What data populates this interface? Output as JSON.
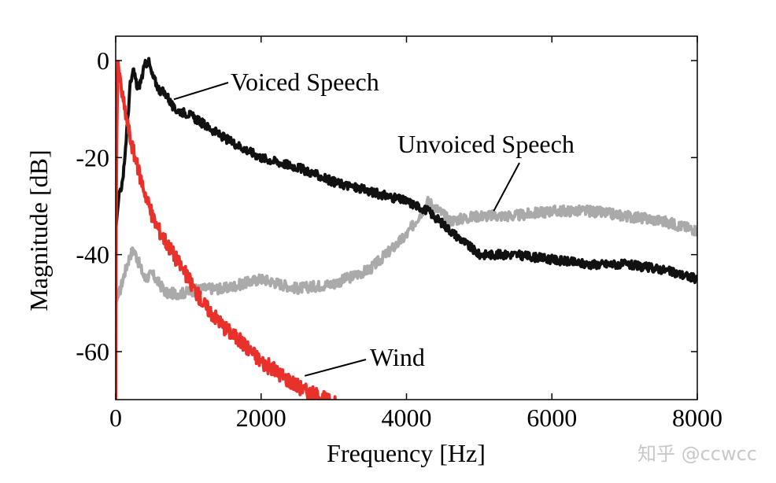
{
  "chart_data": {
    "type": "line",
    "xlabel": "Frequency [Hz]",
    "ylabel": "Magnitude [dB]",
    "xlim": [
      0,
      8000
    ],
    "ylim": [
      -70,
      5
    ],
    "xticks": [
      0,
      2000,
      4000,
      6000,
      8000
    ],
    "xtick_labels": [
      "0",
      "2000",
      "4000",
      "6000",
      "8000"
    ],
    "yticks": [
      0,
      -20,
      -40,
      -60
    ],
    "ytick_labels": [
      "0",
      "-20",
      "-40",
      "-60"
    ],
    "grid": false,
    "legend": "none",
    "series": [
      {
        "name": "Voiced Speech",
        "color": "#111111",
        "x": [
          0,
          50,
          100,
          150,
          200,
          250,
          300,
          350,
          400,
          450,
          500,
          600,
          700,
          800,
          1000,
          1200,
          1500,
          2000,
          2500,
          3000,
          3500,
          4000,
          4300,
          4600,
          5000,
          5500,
          6000,
          6500,
          7000,
          7500,
          8000
        ],
        "y": [
          -35,
          -27,
          -25,
          -15,
          -5,
          -2,
          -6,
          -4,
          -1,
          0,
          -3,
          -6,
          -7,
          -10,
          -11,
          -13,
          -16,
          -20,
          -22,
          -25,
          -27,
          -29,
          -31,
          -35,
          -40,
          -40,
          -41,
          -42,
          -42,
          -43,
          -45
        ]
      },
      {
        "name": "Unvoiced Speech",
        "color": "#aaaaaa",
        "x": [
          0,
          50,
          100,
          200,
          250,
          300,
          400,
          500,
          700,
          900,
          1200,
          1500,
          2000,
          2500,
          3000,
          3500,
          4000,
          4300,
          4600,
          5000,
          5500,
          6000,
          6500,
          7000,
          7500,
          8000
        ],
        "y": [
          -50,
          -48,
          -45,
          -40,
          -39,
          -41,
          -45,
          -44,
          -48,
          -48,
          -47,
          -47,
          -45,
          -47,
          -46,
          -43,
          -36,
          -29,
          -33,
          -32,
          -32,
          -31,
          -31,
          -32,
          -33,
          -35
        ]
      },
      {
        "name": "Wind",
        "color": "#e8312b",
        "x": [
          0,
          10,
          30,
          60,
          100,
          150,
          200,
          300,
          400,
          500,
          600,
          800,
          1000,
          1200,
          1500,
          1800,
          2000,
          2300,
          2600,
          2900,
          3200
        ],
        "y": [
          -70,
          -20,
          0,
          -4,
          -8,
          -12,
          -16,
          -22,
          -27,
          -32,
          -35,
          -40,
          -45,
          -50,
          -55,
          -59,
          -62,
          -65,
          -68,
          -70,
          -72
        ]
      }
    ],
    "annotations": [
      {
        "text": "Voiced Speech",
        "series": "Voiced Speech",
        "point": [
          800,
          -8
        ]
      },
      {
        "text": "Unvoiced Speech",
        "series": "Unvoiced Speech",
        "point": [
          5200,
          -31
        ]
      },
      {
        "text": "Wind",
        "series": "Wind",
        "point": [
          2600,
          -65
        ]
      }
    ]
  },
  "watermark": "知乎 @ccwcc"
}
